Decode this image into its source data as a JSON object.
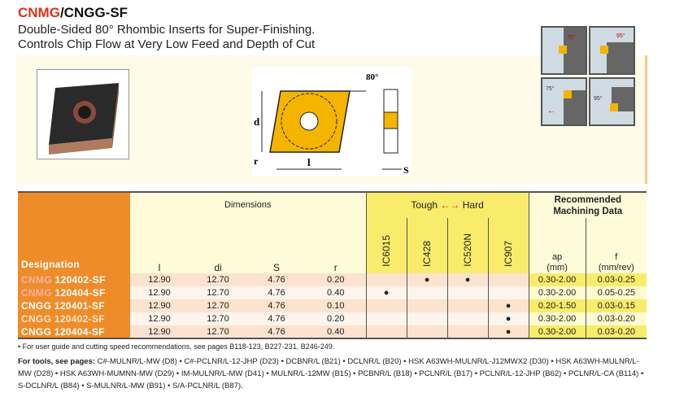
{
  "header": {
    "title_a": "CNMG",
    "title_b": "/CNGG-SF",
    "subtitle1": "Double-Sided 80° Rhombic Inserts for Super-Finishing.",
    "subtitle2": "Controls Chip Flow at Very Low Feed and Depth of Cut"
  },
  "diagram": {
    "angle": "80°",
    "d_label": "d",
    "r_label": "r",
    "l_label": "l",
    "s_label": "S"
  },
  "application_icons": [
    {
      "angle": "75°"
    },
    {
      "angle": "95°"
    },
    {
      "angle": "75°"
    },
    {
      "angle": "95°"
    }
  ],
  "colors": {
    "accent": "#ef8c2a",
    "grade_header": "#f8ec6a",
    "insert_yellow": "#f5b400",
    "cnmg_text": "#f5b0a8"
  },
  "table": {
    "designation_header": "Designation",
    "dimensions_header": "Dimensions",
    "dim_cols": [
      "l",
      "di",
      "S",
      "r"
    ],
    "grades_header_left": "Tough",
    "grades_header_arrow": "←→",
    "grades_header_right": "Hard",
    "grades": [
      "IC6015",
      "IC428",
      "IC520N",
      "IC907"
    ],
    "recommended_header": "Recommended Machining Data",
    "ap_header": "ap",
    "ap_unit": "(mm)",
    "f_header": "f",
    "f_unit": "(mm/rev)",
    "rows": [
      {
        "prefix": "CNMG",
        "code": "120402-SF",
        "l": "12.90",
        "di": "12.70",
        "s": "4.76",
        "r": "0.20",
        "g": [
          "",
          "●",
          "●",
          ""
        ],
        "ap": "0.30-2.00",
        "f": "0.03-0.25"
      },
      {
        "prefix": "CNMG",
        "code": "120404-SF",
        "l": "12.90",
        "di": "12.70",
        "s": "4.76",
        "r": "0.40",
        "g": [
          "●",
          "",
          "",
          ""
        ],
        "ap": "0.30-2.00",
        "f": "0.05-0.25"
      },
      {
        "prefix": "CNGG",
        "code": "120401-SF",
        "l": "12.90",
        "di": "12.70",
        "s": "4.76",
        "r": "0.10",
        "g": [
          "",
          "",
          "",
          "●"
        ],
        "ap": "0.20-1.50",
        "f": "0.03-0.15"
      },
      {
        "prefix": "CNGG",
        "code": "120402-SF",
        "l": "12.90",
        "di": "12.70",
        "s": "4.76",
        "r": "0.20",
        "g": [
          "",
          "",
          "",
          "●"
        ],
        "ap": "0.30-2.00",
        "f": "0.03-0.20"
      },
      {
        "prefix": "CNGG",
        "code": "120404-SF",
        "l": "12.90",
        "di": "12.70",
        "s": "4.76",
        "r": "0.40",
        "g": [
          "",
          "",
          "",
          "●"
        ],
        "ap": "0.30-2.00",
        "f": "0.03-0.20"
      }
    ]
  },
  "notes": {
    "guide": "• For user guide and cutting speed recommendations, see pages B118-123, B227-231, B246-249.",
    "tools_label": "For tools, see pages:",
    "tools_text": " C#-MULNR/L-MW (D8) • C#-PCLNR/L-12-JHP (D23) • DCBNR/L (B21) • DCLNR/L (B20) • HSK A63WH-MULNR/L-J12MWX2 (D30) • HSK A63WH-MULNR/L-MW (D28) • HSK A63WH-MUMNN-MW (D29) • IM-MULNR/L-MW (D41) • MULNR/L-12MW (B15) • PCBNR/L (B18) • PCLNR/L (B17) • PCLNR/L-12-JHP (B62) • PCLNR/L-CA (B114) • S-DCLNR/L (B84) • S-MULNR/L-MW (B91) • S/A-PCLNR/L (B87)."
  }
}
